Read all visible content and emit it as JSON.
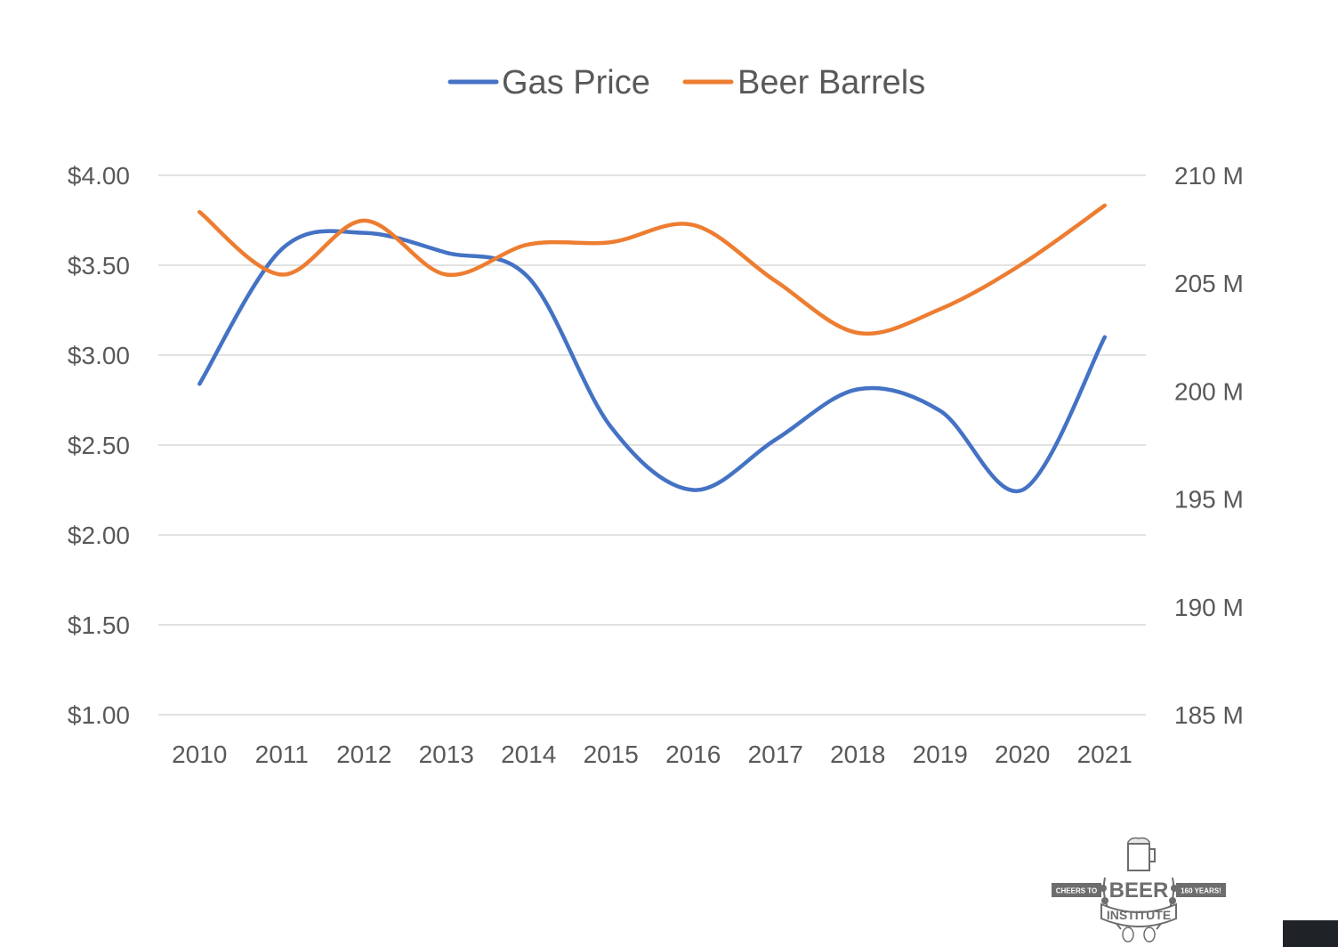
{
  "chart_data": {
    "type": "line",
    "categories": [
      "2010",
      "2011",
      "2012",
      "2013",
      "2014",
      "2015",
      "2016",
      "2017",
      "2018",
      "2019",
      "2020",
      "2021"
    ],
    "series": [
      {
        "name": "Gas Price",
        "axis": "left",
        "color": "#4472C4",
        "values": [
          2.84,
          3.59,
          3.68,
          3.57,
          3.43,
          2.6,
          2.25,
          2.53,
          2.81,
          2.69,
          2.25,
          3.1
        ]
      },
      {
        "name": "Beer Barrels",
        "axis": "right",
        "color": "#ED7D31",
        "values": [
          208.3,
          205.4,
          207.9,
          205.4,
          206.8,
          206.9,
          207.7,
          205.1,
          202.7,
          203.8,
          205.9,
          208.6
        ]
      }
    ],
    "y_left": {
      "ylim": [
        1.0,
        4.0
      ],
      "ticks": [
        "$1.00",
        "$1.50",
        "$2.00",
        "$2.50",
        "$3.00",
        "$3.50",
        "$4.00"
      ]
    },
    "y_right": {
      "ylim": [
        185,
        210
      ],
      "ticks": [
        "185 M",
        "190 M",
        "195 M",
        "200 M",
        "205 M",
        "210 M"
      ]
    },
    "grid": true,
    "legend_position": "top-center"
  },
  "logo": {
    "left_text": "CHEERS TO",
    "main_text": "BEER",
    "sub_text": "INSTITUTE",
    "right_text": "160 YEARS!"
  }
}
